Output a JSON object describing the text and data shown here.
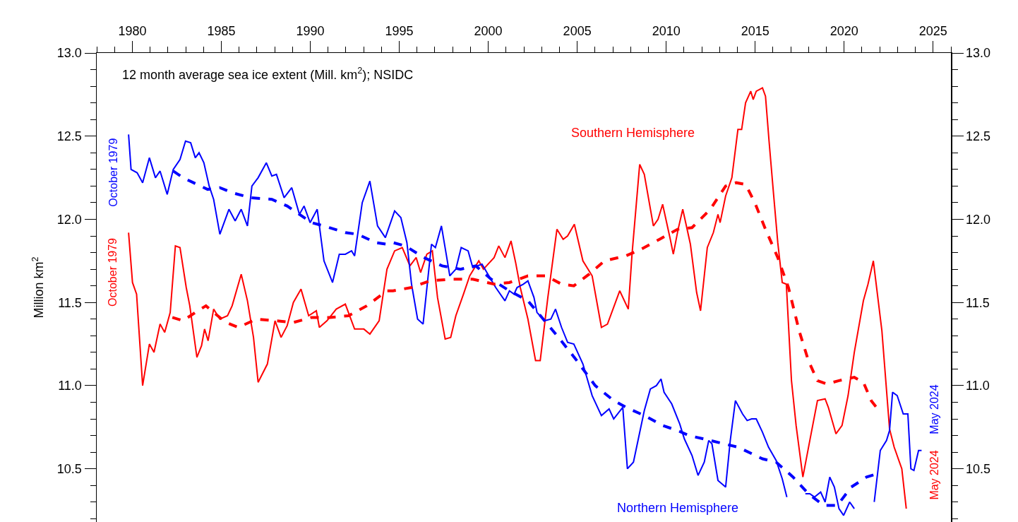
{
  "chart_data": {
    "type": "line",
    "ylabel": "Million km$^{2}$",
    "legend": false,
    "grid": false,
    "marker": "none",
    "xlim": [
      1978,
      2026
    ],
    "xticks": [
      {
        "value": 1978,
        "label": null
      },
      {
        "value": 1979,
        "label": null
      },
      1980,
      {
        "value": 1981,
        "label": null
      },
      {
        "value": 1982,
        "label": null
      },
      {
        "value": 1983,
        "label": null
      },
      {
        "value": 1984,
        "label": null
      },
      1985,
      {
        "value": 1986,
        "label": null
      },
      {
        "value": 1987,
        "label": null
      },
      {
        "value": 1988,
        "label": null
      },
      {
        "value": 1989,
        "label": null
      },
      1990,
      {
        "value": 1991,
        "label": null
      },
      {
        "value": 1992,
        "label": null
      },
      {
        "value": 1993,
        "label": null
      },
      {
        "value": 1994,
        "label": null
      },
      1995,
      {
        "value": 1996,
        "label": null
      },
      {
        "value": 1997,
        "label": null
      },
      {
        "value": 1998,
        "label": null
      },
      {
        "value": 1999,
        "label": null
      },
      2000,
      {
        "value": 2001,
        "label": null
      },
      {
        "value": 2002,
        "label": null
      },
      {
        "value": 2003,
        "label": null
      },
      {
        "value": 2004,
        "label": null
      },
      2005,
      {
        "value": 2006,
        "label": null
      },
      {
        "value": 2007,
        "label": null
      },
      {
        "value": 2008,
        "label": null
      },
      {
        "value": 2009,
        "label": null
      },
      2010,
      {
        "value": 2011,
        "label": null
      },
      {
        "value": 2012,
        "label": null
      },
      {
        "value": 2013,
        "label": null
      },
      {
        "value": 2014,
        "label": null
      },
      2015,
      {
        "value": 2016,
        "label": null
      },
      {
        "value": 2017,
        "label": null
      },
      {
        "value": 2018,
        "label": null
      },
      {
        "value": 2019,
        "label": null
      },
      2020,
      {
        "value": 2021,
        "label": null
      },
      {
        "value": 2022,
        "label": null
      },
      {
        "value": 2023,
        "label": null
      },
      {
        "value": 2024,
        "label": null
      },
      2025,
      {
        "value": 2026,
        "label": null
      }
    ],
    "ylim": [
      10.18,
      13.0
    ],
    "yticks": [
      {
        "value": 10.2,
        "label": null
      },
      {
        "value": 10.3,
        "label": null
      },
      {
        "value": 10.4,
        "label": null
      },
      10.5,
      {
        "value": 10.6,
        "label": null
      },
      {
        "value": 10.7,
        "label": null
      },
      {
        "value": 10.8,
        "label": null
      },
      {
        "value": 10.9,
        "label": null
      },
      {
        "value": 11,
        "label": "11.0"
      },
      {
        "value": 11.1,
        "label": null
      },
      {
        "value": 11.2,
        "label": null
      },
      {
        "value": 11.3,
        "label": null
      },
      {
        "value": 11.4,
        "label": null
      },
      11.5,
      {
        "value": 11.6,
        "label": null
      },
      {
        "value": 11.7,
        "label": null
      },
      {
        "value": 11.8,
        "label": null
      },
      {
        "value": 11.9,
        "label": null
      },
      {
        "value": 12,
        "label": "12.0"
      },
      {
        "value": 12.1,
        "label": null
      },
      {
        "value": 12.2,
        "label": null
      },
      {
        "value": 12.3,
        "label": null
      },
      {
        "value": 12.4,
        "label": null
      },
      12.5,
      {
        "value": 12.6,
        "label": null
      },
      {
        "value": 12.7,
        "label": null
      },
      {
        "value": 12.8,
        "label": null
      },
      {
        "value": 12.9,
        "label": null
      },
      {
        "value": 13,
        "label": "13.0"
      }
    ],
    "y2lim": [
      10.18,
      13.0
    ],
    "y2ticks": [
      {
        "value": 10.2,
        "label": null
      },
      {
        "value": 10.3,
        "label": null
      },
      {
        "value": 10.4,
        "label": null
      },
      10.5,
      {
        "value": 10.6,
        "label": null
      },
      {
        "value": 10.7,
        "label": null
      },
      {
        "value": 10.8,
        "label": null
      },
      {
        "value": 10.9,
        "label": null
      },
      {
        "value": 11,
        "label": "11.0"
      },
      {
        "value": 11.1,
        "label": null
      },
      {
        "value": 11.2,
        "label": null
      },
      {
        "value": 11.3,
        "label": null
      },
      {
        "value": 11.4,
        "label": null
      },
      11.5,
      {
        "value": 11.6,
        "label": null
      },
      {
        "value": 11.7,
        "label": null
      },
      {
        "value": 11.8,
        "label": null
      },
      {
        "value": 11.9,
        "label": null
      },
      {
        "value": 12,
        "label": "12.0"
      },
      {
        "value": 12.1,
        "label": null
      },
      {
        "value": 12.2,
        "label": null
      },
      {
        "value": 12.3,
        "label": null
      },
      {
        "value": 12.4,
        "label": null
      },
      12.5,
      {
        "value": 12.6,
        "label": null
      },
      {
        "value": 12.7,
        "label": null
      },
      {
        "value": 12.8,
        "label": null
      },
      {
        "value": 12.9,
        "label": null
      },
      {
        "value": 13,
        "label": "13.0"
      }
    ],
    "annotations": [
      "12 month average sea ice extent (Mill. km$^{2}$); NSIDC",
      {
        "text": "October 1979",
        "x": 1979.79,
        "y": 12.28
      },
      {
        "text": "October 1979",
        "x": 1979.79,
        "y": 11.68
      },
      "May 2024",
      "May 2024"
    ],
    "series": [
      {
        "name": "Southern Hemisphere",
        "color": "#ff0000",
        "line_style": "solid",
        "x": [
          1979.79,
          1980.01,
          1980.24,
          1980.58,
          1980.96,
          1981.22,
          1981.56,
          1981.82,
          1982.13,
          1982.42,
          1982.68,
          1983.03,
          1983.23,
          1983.63,
          1983.89,
          1984.06,
          1984.26,
          1984.57,
          1984.92,
          1985.35,
          1985.61,
          1986.12,
          1986.47,
          1986.81,
          1987.07,
          1987.59,
          1988.02,
          1988.36,
          1988.7,
          1989.05,
          1989.48,
          1989.91,
          1990.34,
          1990.51,
          1990.94,
          1991.46,
          1991.97,
          1992.49,
          1993.01,
          1993.35,
          1993.87,
          1994.31,
          1994.74,
          1995.17,
          1995.6,
          1995.95,
          1996.2,
          1996.55,
          1996.86,
          1997.15,
          1997.58,
          1997.89,
          1998.18,
          1998.61,
          1998.96,
          1999.47,
          1999.73,
          2000.33,
          2000.59,
          2000.94,
          2001.28,
          2001.54,
          2001.8,
          2002.23,
          2002.66,
          2002.92,
          2003.35,
          2003.86,
          2004.21,
          2004.46,
          2004.84,
          2005.32,
          2005.84,
          2006.36,
          2006.7,
          2007.39,
          2007.87,
          2008.08,
          2008.51,
          2008.77,
          2009.28,
          2009.54,
          2009.8,
          2010.23,
          2010.4,
          2010.67,
          2010.93,
          2011.36,
          2011.71,
          2011.93,
          2012.31,
          2012.65,
          2012.91,
          2013.03,
          2013.34,
          2013.69,
          2014.03,
          2014.24,
          2014.46,
          2014.75,
          2014.89,
          2015.06,
          2015.41,
          2015.58,
          2015.78,
          2016.01,
          2016.27,
          2016.52,
          2016.75,
          2017.04,
          2017.3,
          2017.68,
          2018.07,
          2018.5,
          2018.93,
          2019.11,
          2019.54,
          2019.88,
          2020.22,
          2020.57,
          2021.08,
          2021.34,
          2021.64,
          2022.12,
          2022.55,
          2022.81,
          2023.24,
          2023.49
        ],
        "values": [
          11.92,
          11.62,
          11.55,
          11.0,
          11.25,
          11.2,
          11.37,
          11.32,
          11.44,
          11.84,
          11.83,
          11.59,
          11.48,
          11.17,
          11.24,
          11.34,
          11.27,
          11.46,
          11.4,
          11.42,
          11.48,
          11.67,
          11.51,
          11.29,
          11.02,
          11.13,
          11.39,
          11.29,
          11.36,
          11.5,
          11.58,
          11.42,
          11.45,
          11.35,
          11.39,
          11.46,
          11.49,
          11.34,
          11.34,
          11.31,
          11.39,
          11.7,
          11.81,
          11.83,
          11.72,
          11.77,
          11.68,
          11.79,
          11.81,
          11.53,
          11.28,
          11.29,
          11.42,
          11.55,
          11.66,
          11.75,
          11.7,
          11.77,
          11.84,
          11.77,
          11.87,
          11.74,
          11.59,
          11.4,
          11.15,
          11.15,
          11.53,
          11.94,
          11.88,
          11.9,
          11.97,
          11.75,
          11.66,
          11.35,
          11.37,
          11.57,
          11.46,
          11.79,
          12.33,
          12.27,
          11.96,
          12.0,
          12.09,
          11.88,
          11.79,
          11.94,
          12.06,
          11.85,
          11.56,
          11.45,
          11.83,
          11.92,
          12.03,
          11.98,
          12.14,
          12.25,
          12.54,
          12.54,
          12.7,
          12.77,
          12.72,
          12.77,
          12.79,
          12.74,
          12.47,
          12.18,
          11.86,
          11.62,
          11.61,
          11.03,
          10.76,
          10.45,
          10.67,
          10.91,
          10.92,
          10.87,
          10.71,
          10.76,
          10.94,
          11.2,
          11.51,
          11.61,
          11.75,
          11.33,
          10.74,
          10.63,
          10.5,
          10.26
        ]
      },
      {
        "name": "Northern Hemisphere",
        "color": "#0000ff",
        "line_style": "solid",
        "x": [
          1979.79,
          1979.93,
          1980.27,
          1980.58,
          1980.96,
          1981.3,
          1981.56,
          1981.96,
          1982.3,
          1982.68,
          1982.99,
          1983.28,
          1983.54,
          1983.75,
          1984.02,
          1984.32,
          1984.57,
          1984.92,
          1985.43,
          1985.78,
          1986.12,
          1986.47,
          1986.72,
          1987.07,
          1987.53,
          1987.84,
          1988.1,
          1988.53,
          1988.96,
          1989.39,
          1989.65,
          1989.99,
          1990.39,
          1990.77,
          1991.25,
          1991.63,
          1991.97,
          1992.32,
          1992.49,
          1992.92,
          1993.35,
          1993.78,
          1994.22,
          1994.74,
          1995.09,
          1995.43,
          1995.69,
          1996.03,
          1996.34,
          1996.81,
          1997.03,
          1997.37,
          1997.67,
          1997.84,
          1998.18,
          1998.48,
          1998.87,
          1999.13,
          1999.65,
          2000.42,
          2000.94,
          2001.19,
          2001.45,
          2001.62,
          2001.97,
          2002.23,
          2002.57,
          2002.74,
          2003.17,
          2003.52,
          2003.78,
          2004.12,
          2004.46,
          2004.81,
          2005.32,
          2005.84,
          2006.36,
          2006.79,
          2007.05,
          2007.56,
          2007.82,
          2008.16,
          2008.77,
          2009.11,
          2009.45,
          2009.71,
          2009.88,
          2010.31,
          2010.76,
          2011.02,
          2011.45,
          2011.79,
          2012.14,
          2012.39,
          2012.57,
          2012.91,
          2013.34,
          2013.6,
          2013.89,
          2014.29,
          2014.55,
          2014.8,
          2015.06,
          2015.41,
          2015.75,
          2016.18,
          2016.52,
          2016.78,
          2017.2,
          2017.82,
          2018.07,
          2018.33,
          2018.68,
          2018.93,
          2019.19,
          2019.45,
          2019.71,
          2019.97,
          2020.31,
          2020.57,
          2021.0,
          2021.69,
          2022.03,
          2022.38,
          2022.55,
          2022.72,
          2022.98,
          2023.32,
          2023.58,
          2023.75,
          2023.92,
          2024.18,
          2024.35
        ],
        "values": [
          12.51,
          12.3,
          12.28,
          12.22,
          12.37,
          12.25,
          12.29,
          12.15,
          12.3,
          12.36,
          12.47,
          12.46,
          12.37,
          12.4,
          12.34,
          12.2,
          12.12,
          11.91,
          12.06,
          11.99,
          12.06,
          11.96,
          12.2,
          12.25,
          12.34,
          12.26,
          12.27,
          12.13,
          12.19,
          12.03,
          12.08,
          11.98,
          12.06,
          11.75,
          11.62,
          11.79,
          11.79,
          11.81,
          11.78,
          12.1,
          12.23,
          11.96,
          11.89,
          12.05,
          12.01,
          11.86,
          11.61,
          11.4,
          11.37,
          11.85,
          11.83,
          11.96,
          11.77,
          11.66,
          11.7,
          11.83,
          11.81,
          11.71,
          11.73,
          11.59,
          11.51,
          11.57,
          11.55,
          11.59,
          11.61,
          11.63,
          11.53,
          11.44,
          11.39,
          11.4,
          11.46,
          11.35,
          11.26,
          11.25,
          11.13,
          10.94,
          10.82,
          10.86,
          10.8,
          10.87,
          10.5,
          10.54,
          10.85,
          10.98,
          11.0,
          11.04,
          10.96,
          10.89,
          10.77,
          10.68,
          10.58,
          10.46,
          10.54,
          10.67,
          10.65,
          10.43,
          10.39,
          10.67,
          10.91,
          10.83,
          10.79,
          10.8,
          10.8,
          10.72,
          10.63,
          10.55,
          10.44,
          10.33,
          null,
          10.35,
          10.35,
          10.33,
          10.36,
          10.3,
          10.45,
          10.39,
          10.26,
          10.22,
          10.3,
          10.26,
          null,
          10.3,
          10.61,
          10.67,
          10.73,
          10.96,
          10.94,
          10.83,
          10.83,
          10.5,
          10.49,
          10.61,
          10.61
        ]
      },
      {
        "color": "#ff0000",
        "line_style": "dashed",
        "x": [
          1982.25,
          1982.85,
          1983.54,
          1984.14,
          1984.57,
          1985.26,
          1985.95,
          1986.98,
          1988.02,
          1989.05,
          1990.08,
          1991.11,
          1992.15,
          1993.18,
          1994.3,
          1994.65,
          1995.69,
          1996.72,
          1997.92,
          1999.13,
          2000.33,
          2001.19,
          2002.23,
          2003.26,
          2004.12,
          2004.81,
          2005.67,
          2006.53,
          2007.73,
          2008.59,
          2009.63,
          2010.64,
          2011.45,
          2012.48,
          2013.34,
          2013.94,
          2014.46,
          2014.98,
          2015.58,
          2016.27,
          2016.87,
          2017.47,
          2017.99,
          2018.5,
          2019.02,
          2019.71,
          2020.57,
          2021.08,
          2021.52,
          2021.95
        ],
        "values": [
          11.41,
          11.39,
          11.44,
          11.48,
          11.44,
          11.38,
          11.35,
          11.4,
          11.39,
          11.38,
          11.41,
          11.41,
          11.42,
          11.48,
          11.57,
          11.57,
          11.59,
          11.63,
          11.64,
          11.64,
          11.61,
          11.62,
          11.66,
          11.66,
          11.61,
          11.6,
          11.67,
          11.75,
          11.78,
          11.82,
          11.88,
          11.94,
          11.95,
          12.06,
          12.2,
          12.22,
          12.21,
          12.1,
          11.94,
          11.77,
          11.59,
          11.33,
          11.15,
          11.03,
          11.01,
          11.03,
          11.05,
          11.02,
          10.91,
          10.85
        ]
      },
      {
        "color": "#0000ff",
        "line_style": "dashed",
        "x": [
          1982.3,
          1982.85,
          1984.23,
          1984.92,
          1985.61,
          1986.64,
          1987.84,
          1988.7,
          1990.08,
          1990.77,
          1991.97,
          1992.66,
          1993.69,
          1994.3,
          1994.65,
          1995.34,
          1996.38,
          1997.41,
          1998.44,
          1999.3,
          2000.16,
          2001.19,
          2002.23,
          2003.09,
          2003.95,
          2004.98,
          2006.01,
          2007.05,
          2007.73,
          2008.77,
          2009.8,
          2010.64,
          2011.28,
          2012.48,
          2014.03,
          2015.41,
          2016.18,
          2017.13,
          2017.99,
          2018.85,
          2019.62,
          2020.4,
          2021.26,
          2021.86
        ],
        "values": [
          12.29,
          12.25,
          12.18,
          12.19,
          12.16,
          12.13,
          12.12,
          12.08,
          11.98,
          11.96,
          11.92,
          11.91,
          11.86,
          11.85,
          11.86,
          11.84,
          11.77,
          11.72,
          11.7,
          11.72,
          11.64,
          11.57,
          11.51,
          11.4,
          11.29,
          11.15,
          11.0,
          10.91,
          10.87,
          10.82,
          10.76,
          10.73,
          10.7,
          10.67,
          10.63,
          10.56,
          10.54,
          10.45,
          10.35,
          10.28,
          10.28,
          10.39,
          10.45,
          10.47
        ]
      }
    ]
  }
}
